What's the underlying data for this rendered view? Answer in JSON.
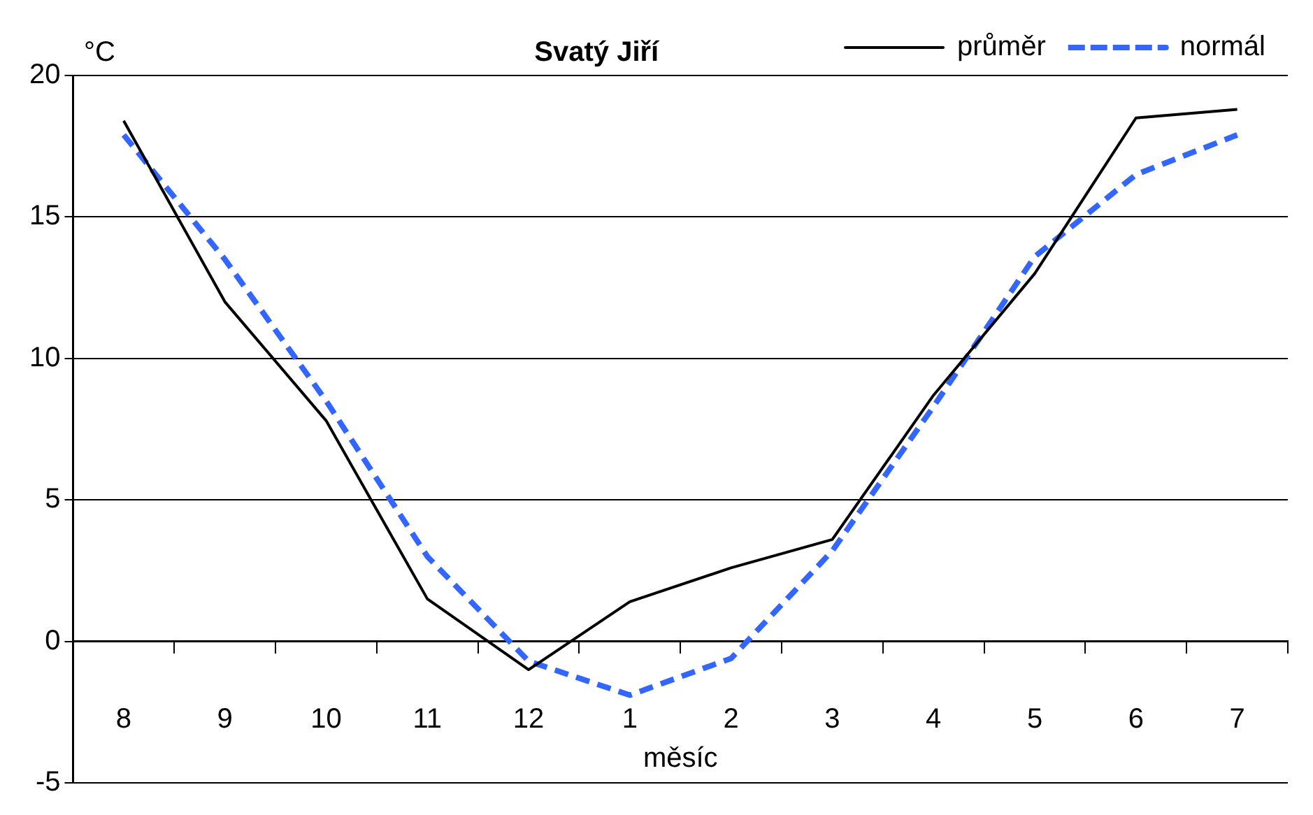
{
  "chart_data": {
    "type": "line",
    "title": "Svatý Jiří",
    "ylabel": "°C",
    "xlabel": "měsíc",
    "categories": [
      "8",
      "9",
      "10",
      "11",
      "12",
      "1",
      "2",
      "3",
      "4",
      "5",
      "6",
      "7"
    ],
    "series": [
      {
        "name": "průměr",
        "color": "#000000",
        "line_style": "solid",
        "values": [
          18.4,
          12.0,
          7.8,
          1.5,
          -1.0,
          1.4,
          2.6,
          3.6,
          8.7,
          13.0,
          18.5,
          18.8
        ]
      },
      {
        "name": "normál",
        "color": "#3366ff",
        "line_style": "dashed",
        "values": [
          17.9,
          13.5,
          8.5,
          3.0,
          -0.7,
          -1.9,
          -0.6,
          3.2,
          8.3,
          13.6,
          16.5,
          17.9
        ]
      }
    ],
    "ylim": [
      -5,
      20
    ],
    "yticks": [
      -5,
      0,
      5,
      10,
      15,
      20
    ],
    "grid": "y",
    "legend": "top right",
    "marker": "none"
  }
}
